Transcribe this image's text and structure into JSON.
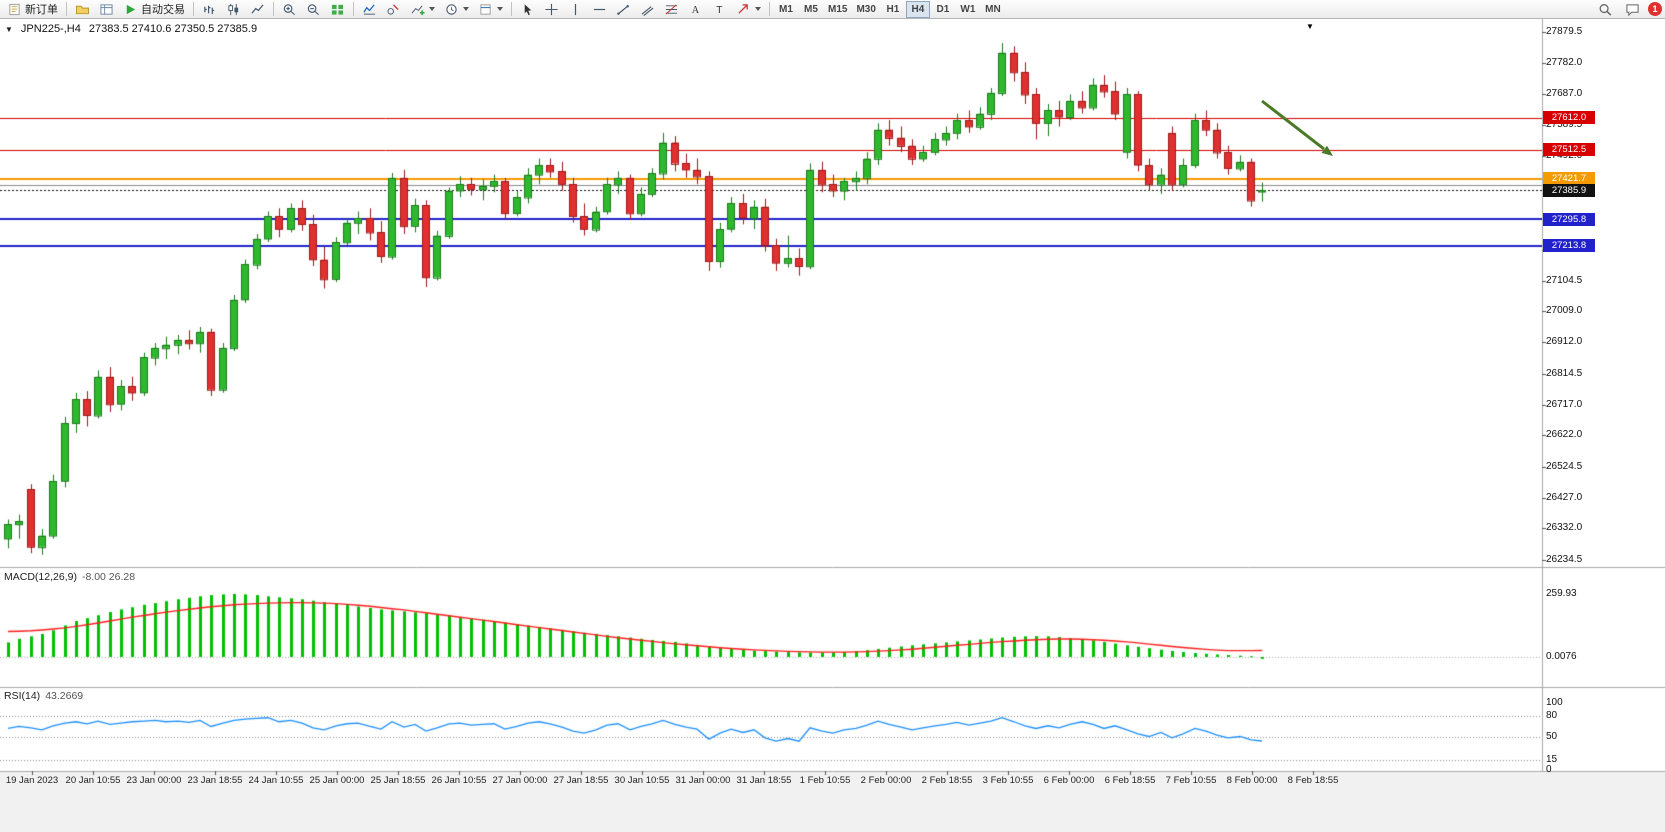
{
  "toolbar": {
    "new_order_label": "新订单",
    "auto_trading_label": "自动交易",
    "timeframes": [
      "M1",
      "M5",
      "M15",
      "M30",
      "H1",
      "H4",
      "D1",
      "W1",
      "MN"
    ],
    "active_timeframe": "H4",
    "notification_count": "1",
    "icons": [
      "new-order-icon",
      "profiles-icon",
      "data-window-icon",
      "auto-trading-icon",
      "bar-chart-icon",
      "candlestick-chart-icon",
      "line-chart-icon",
      "zoom-in-icon",
      "zoom-out-icon",
      "tile-windows-icon",
      "indicators-list-icon",
      "objects-list-icon",
      "add-indicator-icon",
      "periods-clock-icon",
      "templates-icon",
      "cursor-icon",
      "crosshair-icon",
      "vertical-line-icon",
      "horizontal-line-icon",
      "trendline-icon",
      "channel-icon",
      "fibonacci-icon",
      "text-icon",
      "label-icon",
      "arrows-icon",
      "search-icon",
      "chat-icon",
      "chart-menu-icon",
      "chart-shift-marker-icon"
    ]
  },
  "chart": {
    "symbol_label": "JPN225-,H4",
    "ohlc": "27383.5 27410.6 27350.5 27385.9",
    "price_axis_labels": [
      "27879.5",
      "27782.0",
      "27687.0",
      "27589.5",
      "27492.0",
      "27201.0",
      "27104.5",
      "27009.0",
      "26912.0",
      "26814.5",
      "26717.0",
      "26622.0",
      "26524.5",
      "26427.0",
      "26332.0",
      "26234.5"
    ],
    "levels": [
      {
        "label": "27612.0",
        "price": 27612.0,
        "color": "#d60000",
        "width": 1,
        "badge": true,
        "dashed": false
      },
      {
        "label": "27512.5",
        "price": 27512.5,
        "color": "#d60000",
        "width": 1,
        "badge": true,
        "dashed": false
      },
      {
        "label": "27421.7",
        "price": 27421.7,
        "color": "#f59a00",
        "width": 2,
        "badge": true,
        "dashed": false
      },
      {
        "label": "",
        "price": 27403.0,
        "color": "#8a8a8a",
        "width": 1,
        "badge": false,
        "dashed": false
      },
      {
        "label": "27385.9",
        "price": 27385.9,
        "color": "#111111",
        "width": 1,
        "badge": true,
        "dashed": true
      },
      {
        "label": "27295.8",
        "price": 27295.8,
        "color": "#2222cc",
        "width": 2,
        "badge": true,
        "dashed": false
      },
      {
        "label": "27213.8",
        "price": 27213.8,
        "color": "#2222cc",
        "width": 2,
        "badge": true,
        "dashed": false
      }
    ]
  },
  "indicators": {
    "macd": {
      "title": "MACD(12,26,9)",
      "values": "-8.00 26.28",
      "axis_labels": [
        "259.93",
        "0.0076"
      ]
    },
    "rsi": {
      "title": "RSI(14)",
      "value": "43.2669",
      "axis_labels": [
        100,
        80,
        50,
        15,
        0
      ],
      "level_lines": [
        80,
        50,
        15
      ]
    }
  },
  "time_axis": {
    "labels": [
      "19 Jan 2023",
      "20 Jan 10:55",
      "23 Jan 00:00",
      "23 Jan 18:55",
      "24 Jan 10:55",
      "25 Jan 00:00",
      "25 Jan 18:55",
      "26 Jan 10:55",
      "27 Jan 00:00",
      "27 Jan 18:55",
      "30 Jan 10:55",
      "31 Jan 00:00",
      "31 Jan 18:55",
      "1 Feb 10:55",
      "2 Feb 00:00",
      "2 Feb 18:55",
      "3 Feb 10:55",
      "6 Feb 00:00",
      "6 Feb 18:55",
      "7 Feb 10:55",
      "8 Feb 00:00",
      "8 Feb 18:55"
    ]
  },
  "chart_data": {
    "type": "candlestick",
    "symbol": "JPN225-",
    "timeframe": "H4",
    "title": "JPN225-,H4",
    "current": {
      "open": 27383.5,
      "high": 27410.6,
      "low": 27350.5,
      "close": 27385.9
    },
    "price_range": [
      26212,
      27920
    ],
    "up_color": "#2eb82e",
    "down_color": "#e03030",
    "candles": [
      [
        26300,
        26360,
        26270,
        26345
      ],
      [
        26345,
        26375,
        26300,
        26355
      ],
      [
        26455,
        26470,
        26255,
        26275
      ],
      [
        26275,
        26330,
        26250,
        26310
      ],
      [
        26310,
        26500,
        26300,
        26480
      ],
      [
        26480,
        26680,
        26460,
        26660
      ],
      [
        26660,
        26755,
        26630,
        26735
      ],
      [
        26735,
        26760,
        26650,
        26685
      ],
      [
        26685,
        26825,
        26675,
        26805
      ],
      [
        26805,
        26835,
        26695,
        26720
      ],
      [
        26720,
        26795,
        26700,
        26775
      ],
      [
        26775,
        26805,
        26730,
        26755
      ],
      [
        26755,
        26880,
        26745,
        26865
      ],
      [
        26865,
        26910,
        26840,
        26895
      ],
      [
        26895,
        26930,
        26860,
        26905
      ],
      [
        26905,
        26935,
        26875,
        26920
      ],
      [
        26920,
        26950,
        26890,
        26910
      ],
      [
        26910,
        26960,
        26880,
        26945
      ],
      [
        26945,
        26955,
        26745,
        26765
      ],
      [
        26765,
        26910,
        26755,
        26895
      ],
      [
        26895,
        27060,
        26885,
        27045
      ],
      [
        27045,
        27170,
        27035,
        27155
      ],
      [
        27155,
        27250,
        27140,
        27235
      ],
      [
        27235,
        27320,
        27225,
        27305
      ],
      [
        27305,
        27330,
        27240,
        27265
      ],
      [
        27265,
        27345,
        27255,
        27330
      ],
      [
        27330,
        27355,
        27260,
        27280
      ],
      [
        27280,
        27310,
        27150,
        27170
      ],
      [
        27170,
        27210,
        27080,
        27110
      ],
      [
        27110,
        27240,
        27100,
        27225
      ],
      [
        27225,
        27300,
        27215,
        27285
      ],
      [
        27285,
        27320,
        27250,
        27300
      ],
      [
        27300,
        27330,
        27230,
        27255
      ],
      [
        27255,
        27290,
        27160,
        27180
      ],
      [
        27180,
        27440,
        27170,
        27425
      ],
      [
        27425,
        27450,
        27250,
        27275
      ],
      [
        27275,
        27360,
        27255,
        27340
      ],
      [
        27340,
        27355,
        27085,
        27115
      ],
      [
        27115,
        27260,
        27105,
        27245
      ],
      [
        27245,
        27395,
        27235,
        27385
      ],
      [
        27385,
        27430,
        27365,
        27405
      ],
      [
        27405,
        27425,
        27370,
        27390
      ],
      [
        27390,
        27420,
        27355,
        27400
      ],
      [
        27400,
        27435,
        27380,
        27415
      ],
      [
        27415,
        27425,
        27295,
        27315
      ],
      [
        27315,
        27385,
        27305,
        27365
      ],
      [
        27365,
        27455,
        27345,
        27435
      ],
      [
        27435,
        27485,
        27405,
        27465
      ],
      [
        27465,
        27485,
        27425,
        27445
      ],
      [
        27445,
        27475,
        27385,
        27405
      ],
      [
        27405,
        27425,
        27285,
        27305
      ],
      [
        27305,
        27345,
        27245,
        27265
      ],
      [
        27265,
        27335,
        27255,
        27320
      ],
      [
        27320,
        27425,
        27310,
        27405
      ],
      [
        27405,
        27445,
        27375,
        27425
      ],
      [
        27425,
        27435,
        27295,
        27315
      ],
      [
        27315,
        27395,
        27305,
        27375
      ],
      [
        27375,
        27455,
        27365,
        27440
      ],
      [
        27440,
        27565,
        27420,
        27535
      ],
      [
        27535,
        27555,
        27445,
        27470
      ],
      [
        27470,
        27500,
        27425,
        27450
      ],
      [
        27450,
        27485,
        27405,
        27430
      ],
      [
        27430,
        27445,
        27135,
        27165
      ],
      [
        27165,
        27285,
        27145,
        27265
      ],
      [
        27265,
        27365,
        27255,
        27345
      ],
      [
        27345,
        27375,
        27280,
        27300
      ],
      [
        27300,
        27355,
        27265,
        27335
      ],
      [
        27335,
        27360,
        27195,
        27215
      ],
      [
        27215,
        27235,
        27135,
        27160
      ],
      [
        27160,
        27245,
        27145,
        27175
      ],
      [
        27175,
        27205,
        27120,
        27150
      ],
      [
        27150,
        27470,
        27140,
        27450
      ],
      [
        27450,
        27475,
        27380,
        27405
      ],
      [
        27405,
        27435,
        27365,
        27385
      ],
      [
        27385,
        27425,
        27355,
        27415
      ],
      [
        27415,
        27445,
        27385,
        27425
      ],
      [
        27425,
        27505,
        27405,
        27485
      ],
      [
        27485,
        27595,
        27465,
        27575
      ],
      [
        27575,
        27605,
        27525,
        27550
      ],
      [
        27550,
        27585,
        27505,
        27525
      ],
      [
        27525,
        27545,
        27465,
        27485
      ],
      [
        27485,
        27525,
        27475,
        27505
      ],
      [
        27505,
        27565,
        27495,
        27545
      ],
      [
        27545,
        27585,
        27525,
        27565
      ],
      [
        27565,
        27625,
        27545,
        27605
      ],
      [
        27605,
        27635,
        27565,
        27585
      ],
      [
        27585,
        27645,
        27575,
        27625
      ],
      [
        27625,
        27705,
        27605,
        27690
      ],
      [
        27690,
        27845,
        27680,
        27815
      ],
      [
        27815,
        27835,
        27725,
        27755
      ],
      [
        27755,
        27785,
        27655,
        27685
      ],
      [
        27685,
        27705,
        27545,
        27595
      ],
      [
        27595,
        27655,
        27555,
        27635
      ],
      [
        27635,
        27665,
        27585,
        27615
      ],
      [
        27615,
        27685,
        27605,
        27665
      ],
      [
        27665,
        27695,
        27625,
        27645
      ],
      [
        27645,
        27735,
        27635,
        27715
      ],
      [
        27715,
        27745,
        27675,
        27695
      ],
      [
        27695,
        27725,
        27605,
        27625
      ],
      [
        27505,
        27705,
        27485,
        27685
      ],
      [
        27685,
        27695,
        27445,
        27465
      ],
      [
        27465,
        27485,
        27385,
        27405
      ],
      [
        27405,
        27455,
        27375,
        27435
      ],
      [
        27565,
        27585,
        27385,
        27405
      ],
      [
        27405,
        27485,
        27395,
        27465
      ],
      [
        27465,
        27625,
        27455,
        27605
      ],
      [
        27605,
        27635,
        27555,
        27575
      ],
      [
        27575,
        27595,
        27485,
        27505
      ],
      [
        27505,
        27525,
        27435,
        27455
      ],
      [
        27455,
        27495,
        27445,
        27475
      ],
      [
        27475,
        27485,
        27335,
        27355
      ],
      [
        27383.5,
        27410.6,
        27350.5,
        27385.9
      ]
    ],
    "macd": {
      "range": [
        -124,
        371
      ],
      "histogram": [
        60,
        75,
        85,
        95,
        110,
        130,
        148,
        160,
        172,
        185,
        196,
        205,
        215,
        222,
        230,
        238,
        244,
        250,
        255,
        258,
        260,
        258,
        255,
        250,
        246,
        242,
        238,
        232,
        226,
        220,
        214,
        208,
        202,
        196,
        192,
        188,
        184,
        180,
        175,
        170,
        165,
        160,
        154,
        148,
        142,
        136,
        130,
        124,
        118,
        112,
        106,
        100,
        95,
        90,
        85,
        80,
        75,
        70,
        66,
        62,
        56,
        50,
        44,
        38,
        33,
        29,
        26,
        24,
        22,
        20,
        19,
        18,
        18,
        19,
        21,
        24,
        28,
        33,
        38,
        43,
        48,
        52,
        56,
        60,
        64,
        68,
        72,
        76,
        80,
        83,
        85,
        86,
        85,
        82,
        78,
        73,
        68,
        62,
        55,
        48,
        42,
        36,
        30,
        25,
        20,
        16,
        13,
        10,
        8,
        5,
        3,
        -8
      ],
      "signal": [
        105,
        106,
        108,
        111,
        115,
        120,
        126,
        133,
        140,
        148,
        156,
        164,
        171,
        178,
        185,
        191,
        197,
        202,
        207,
        211,
        215,
        218,
        220,
        222,
        223,
        224,
        224,
        223,
        222,
        220,
        217,
        213,
        209,
        204,
        199,
        194,
        188,
        182,
        176,
        170,
        164,
        158,
        152,
        146,
        140,
        133,
        127,
        121,
        115,
        109,
        103,
        97,
        91,
        85,
        79,
        74,
        69,
        64,
        59,
        54,
        50,
        46,
        42,
        38,
        35,
        32,
        29,
        27,
        25,
        23,
        22,
        21,
        20,
        20,
        20,
        21,
        22,
        24,
        26,
        29,
        32,
        36,
        40,
        44,
        48,
        52,
        56,
        60,
        63,
        66,
        69,
        71,
        73,
        74,
        74,
        73,
        71,
        69,
        66,
        62,
        58,
        53,
        48,
        43,
        39,
        35,
        31,
        28,
        26,
        26,
        26,
        26.28
      ]
    },
    "rsi": {
      "range": [
        0,
        100
      ],
      "values": [
        62,
        65,
        63,
        60,
        66,
        70,
        72,
        69,
        73,
        68,
        70,
        72,
        73,
        74,
        72,
        73,
        71,
        74,
        65,
        70,
        74,
        76,
        77,
        78,
        72,
        74,
        70,
        63,
        60,
        66,
        69,
        70,
        65,
        61,
        72,
        64,
        68,
        58,
        63,
        69,
        70,
        67,
        68,
        69,
        61,
        65,
        70,
        72,
        69,
        64,
        58,
        55,
        60,
        67,
        69,
        60,
        65,
        69,
        74,
        68,
        64,
        61,
        46,
        55,
        61,
        56,
        60,
        48,
        43,
        47,
        43,
        63,
        58,
        55,
        60,
        62,
        67,
        73,
        68,
        64,
        60,
        63,
        66,
        68,
        71,
        67,
        70,
        73,
        78,
        72,
        66,
        62,
        66,
        63,
        68,
        72,
        68,
        62,
        66,
        60,
        54,
        50,
        56,
        48,
        54,
        62,
        58,
        52,
        48,
        50,
        45,
        43.27
      ]
    }
  }
}
